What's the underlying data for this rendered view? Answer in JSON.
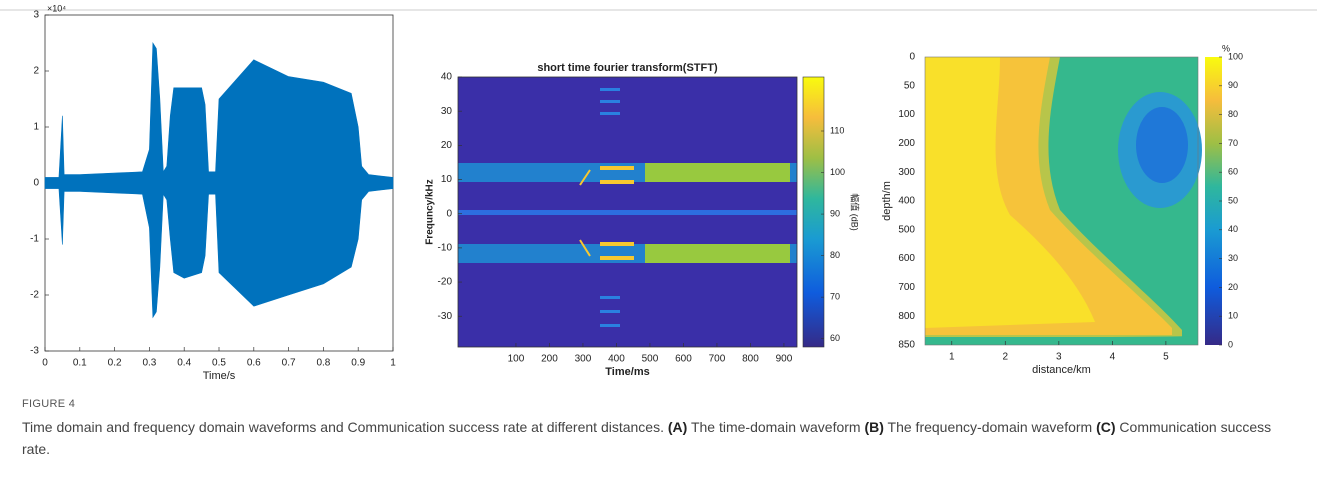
{
  "chart_data": [
    {
      "type": "line",
      "xlabel": "Time/s",
      "y_exponent_label": "×10⁴",
      "xlim": [
        0,
        1
      ],
      "xticks": [
        0,
        0.1,
        0.2,
        0.3,
        0.4,
        0.5,
        0.6,
        0.7,
        0.8,
        0.9,
        1
      ],
      "ylim": [
        -3,
        3
      ],
      "yticks": [
        -3,
        -2,
        -1,
        0,
        1,
        2,
        3
      ],
      "x": [
        0,
        0.04,
        0.05,
        0.055,
        0.1,
        0.28,
        0.3,
        0.31,
        0.32,
        0.33,
        0.34,
        0.35,
        0.36,
        0.37,
        0.4,
        0.45,
        0.46,
        0.47,
        0.49,
        0.5,
        0.6,
        0.7,
        0.8,
        0.88,
        0.9,
        0.91,
        0.93,
        1
      ],
      "series": [
        {
          "color": "#0072bd",
          "values": [
            0.1,
            0.1,
            1.2,
            0.15,
            0.15,
            0.2,
            0.6,
            2.5,
            2.4,
            1.5,
            0.2,
            0.3,
            1.2,
            1.7,
            1.7,
            1.7,
            1.4,
            0.2,
            0.2,
            1.5,
            2.2,
            1.9,
            1.8,
            1.6,
            1.0,
            0.3,
            0.15,
            0.1
          ]
        },
        {
          "color": "#0072bd",
          "values": [
            -0.1,
            -0.1,
            -1.1,
            -0.15,
            -0.15,
            -0.2,
            -0.8,
            -2.4,
            -2.3,
            -1.5,
            -0.2,
            -0.3,
            -1.0,
            -1.6,
            -1.7,
            -1.6,
            -1.3,
            -0.2,
            -0.2,
            -1.6,
            -2.2,
            -2.0,
            -1.8,
            -1.5,
            -1.0,
            -0.3,
            -0.15,
            -0.1
          ]
        }
      ]
    },
    {
      "type": "heatmap",
      "title": "short time fourier transform(STFT)",
      "xlabel": "Time/ms",
      "ylabel": "Frequncy/kHz",
      "xlim": [
        -73,
        939
      ],
      "xticks": [
        100,
        200,
        300,
        400,
        500,
        600,
        700,
        800,
        900
      ],
      "ylim": [
        -39,
        40
      ],
      "yticks": [
        -30,
        -20,
        -10,
        0,
        10,
        20,
        30,
        40
      ],
      "colorbar_label": "幅值 (dB)",
      "clim": [
        58,
        123
      ],
      "cticks": [
        60,
        70,
        80,
        90,
        100,
        110
      ]
    },
    {
      "type": "contour",
      "xlabel": "distance/km",
      "ylabel": "depth/m",
      "xlim": [
        0.5,
        5.6
      ],
      "xticks": [
        1,
        2,
        3,
        4,
        5
      ],
      "ycategories": [
        0,
        50,
        100,
        200,
        300,
        400,
        500,
        600,
        700,
        800,
        850
      ],
      "colorbar_label": "%",
      "clim": [
        0,
        100
      ],
      "cticks": [
        0,
        10,
        20,
        30,
        40,
        50,
        60,
        70,
        80,
        90,
        100
      ]
    }
  ],
  "figure": {
    "label": "FIGURE 4",
    "caption": "Time domain and frequency domain waveforms and Communication success rate at different distances.",
    "parts": [
      {
        "label": "(A)",
        "text": "The time-domain waveform"
      },
      {
        "label": "(B)",
        "text": "The frequency-domain waveform"
      },
      {
        "label": "(C)",
        "text": "Communication success rate."
      }
    ]
  }
}
